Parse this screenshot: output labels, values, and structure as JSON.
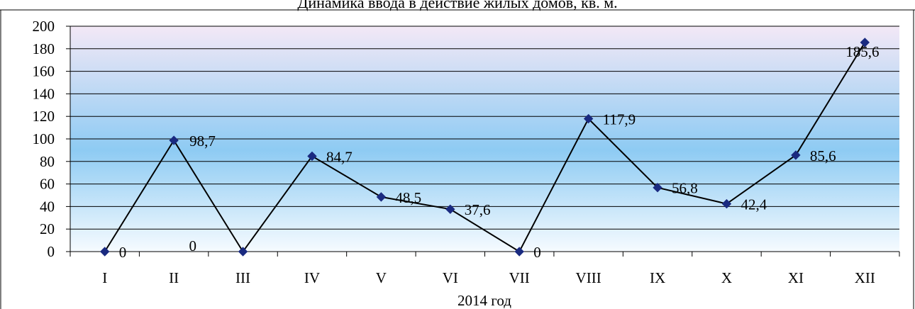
{
  "chart_data": {
    "type": "line",
    "title": "Динамика ввода в действие жилых домов, кв. м.",
    "xlabel": "2014 год",
    "ylabel": "",
    "categories": [
      "I",
      "II",
      "III",
      "IV",
      "V",
      "VI",
      "VII",
      "VIII",
      "IX",
      "X",
      "XI",
      "XII"
    ],
    "values": [
      0,
      98.7,
      0,
      84.7,
      48.5,
      37.6,
      0,
      117.9,
      56.8,
      42.4,
      85.6,
      185.6
    ],
    "data_labels": [
      "0",
      "98,7",
      "0",
      "84,7",
      "48,5",
      "37,6",
      "0",
      "117,9",
      "56,8",
      "42,4",
      "85,6",
      "185,6"
    ],
    "ylim": [
      0,
      200
    ],
    "yticks": [
      0,
      20,
      40,
      60,
      80,
      100,
      120,
      140,
      160,
      180,
      200
    ],
    "grid": true,
    "legend": "none",
    "colors": {
      "line": "#000000",
      "marker": "#1a2a80",
      "gradient_top": "#f3e8f6",
      "gradient_mid": "#8ecbf3",
      "gradient_bottom": "#f6fbff"
    }
  }
}
